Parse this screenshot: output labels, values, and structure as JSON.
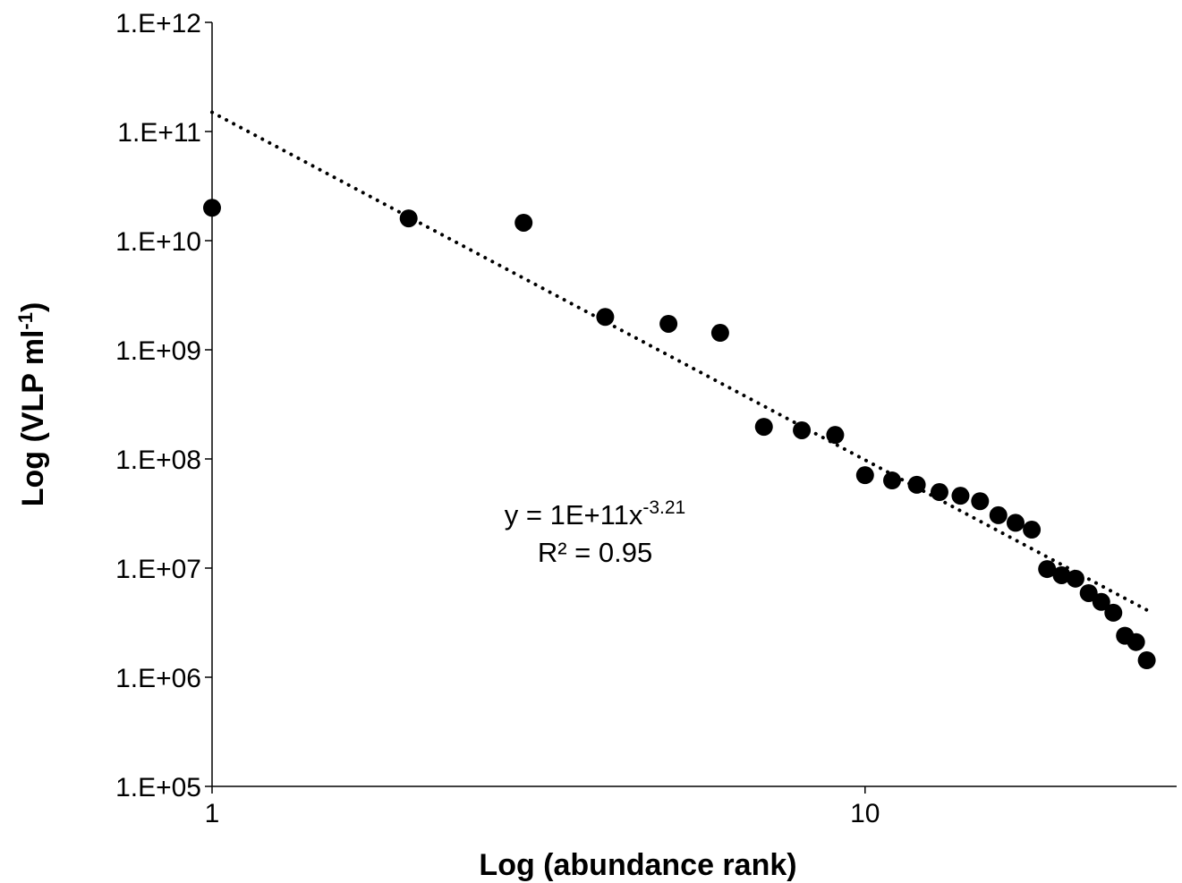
{
  "chart_data": {
    "type": "scatter",
    "x_label": "Log (abundance rank)",
    "y_label": {
      "text": "Log (VLP ml",
      "superscript": "-1",
      "suffix": ")"
    },
    "xscale": "log",
    "yscale": "log",
    "xlim": [
      1,
      30
    ],
    "ylim": [
      100000,
      1000000000000
    ],
    "xticks": [
      1,
      10
    ],
    "yticks": [
      {
        "value": 1000000000000,
        "label": "1.E+12"
      },
      {
        "value": 100000000000,
        "label": "1.E+11"
      },
      {
        "value": 10000000000,
        "label": "1.E+10"
      },
      {
        "value": 1000000000,
        "label": "1.E+09"
      },
      {
        "value": 100000000,
        "label": "1.E+08"
      },
      {
        "value": 10000000,
        "label": "1.E+07"
      },
      {
        "value": 1000000,
        "label": "1.E+06"
      },
      {
        "value": 100000,
        "label": "1.E+05"
      }
    ],
    "series": [
      {
        "color": "#000000",
        "x": [
          1,
          2,
          3,
          4,
          5,
          6,
          7,
          8,
          9,
          10,
          11,
          12,
          13,
          14,
          15,
          16,
          17,
          18,
          19,
          20,
          21,
          22,
          23,
          24,
          25,
          26,
          27
        ],
        "values": [
          20000000000,
          16000000000,
          14600000000,
          2000000000,
          1730000000,
          1430000000,
          197000000,
          183000000,
          166000000,
          71000000,
          63500000,
          58000000,
          49700000,
          46000000,
          41000000,
          30500000,
          26000000,
          22500000,
          9800000,
          8600000,
          8000000,
          5900000,
          4900000,
          3900000,
          2400000,
          2100000,
          1430000
        ]
      }
    ],
    "trendline": {
      "x": [
        1,
        27.5
      ],
      "values": [
        150000000000,
        3900000
      ],
      "color": "#000000",
      "style": "dotted"
    },
    "annotations": [
      {
        "text": "y = 1E+11x",
        "superscript": "-3.21"
      },
      {
        "text": "R² = 0.95"
      }
    ]
  }
}
